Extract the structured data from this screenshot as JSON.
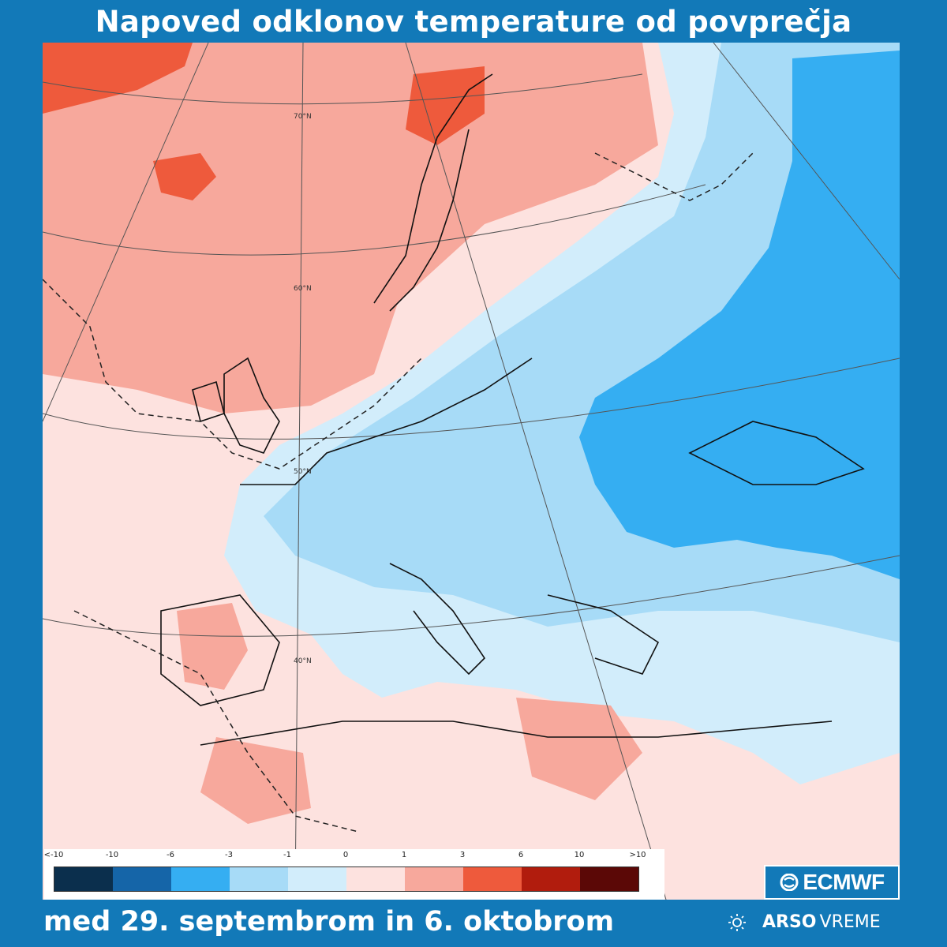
{
  "title": "Napoved odklonov temperature od povprečja",
  "subtitle": "med 29. septembrom in 6. oktobrom",
  "legend": {
    "labels": [
      "<-10",
      "-10",
      "-6",
      "-3",
      "-1",
      "0",
      "1",
      "3",
      "6",
      "10",
      ">10"
    ],
    "colors": [
      "#0b2f4d",
      "#1565a8",
      "#35aef2",
      "#a7dbf7",
      "#d2edfb",
      "#fde2df",
      "#f7a89c",
      "#ee5a3c",
      "#b11c0d",
      "#5b0806"
    ]
  },
  "map": {
    "lat_labels": [
      "70°N",
      "60°N",
      "50°N",
      "40°N"
    ]
  },
  "brand": {
    "ecmwf": "ECMWF",
    "arso_bold": "ARSO",
    "arso_light": "VREME"
  }
}
